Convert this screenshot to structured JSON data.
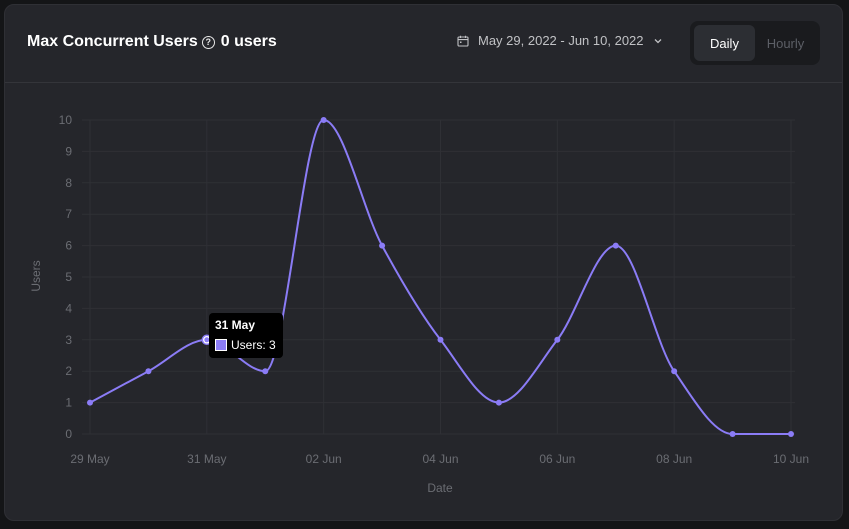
{
  "header": {
    "title": "Max Concurrent Users",
    "count_label": "0 users",
    "help_icon": "question-circle-icon",
    "date_range_label": "May 29, 2022 - Jun 10, 2022",
    "calendar_icon": "calendar-icon",
    "chevron_icon": "chevron-down-icon",
    "toggle": {
      "daily_label": "Daily",
      "hourly_label": "Hourly",
      "selected": "Daily"
    }
  },
  "tooltip": {
    "title": "31 May",
    "label": "Users: 3"
  },
  "colors": {
    "accent": "#8b7cf6",
    "background": "#25262b",
    "grid": "#2f3035",
    "axis_text": "#6b6d73"
  },
  "chart_data": {
    "type": "line",
    "xlabel": "Date",
    "ylabel": "Users",
    "ylim": [
      0,
      10
    ],
    "yticks": [
      0,
      1,
      2,
      3,
      4,
      5,
      6,
      7,
      8,
      9,
      10
    ],
    "x": [
      "2022-05-29",
      "2022-05-30",
      "2022-05-31",
      "2022-06-01",
      "2022-06-02",
      "2022-06-03",
      "2022-06-04",
      "2022-06-05",
      "2022-06-06",
      "2022-06-07",
      "2022-06-08",
      "2022-06-09",
      "2022-06-10"
    ],
    "xtick_labels": [
      "29 May",
      "31 May",
      "02 Jun",
      "04 Jun",
      "06 Jun",
      "08 Jun",
      "10 Jun"
    ],
    "xtick_dates": [
      "2022-05-29",
      "2022-05-31",
      "2022-06-02",
      "2022-06-04",
      "2022-06-06",
      "2022-06-08",
      "2022-06-10"
    ],
    "series": [
      {
        "values": [
          1,
          2,
          3,
          2,
          10,
          6,
          3,
          1,
          3,
          6,
          2,
          0,
          0
        ]
      }
    ],
    "highlighted_date": "2022-05-31",
    "grid": true,
    "smooth": true
  }
}
